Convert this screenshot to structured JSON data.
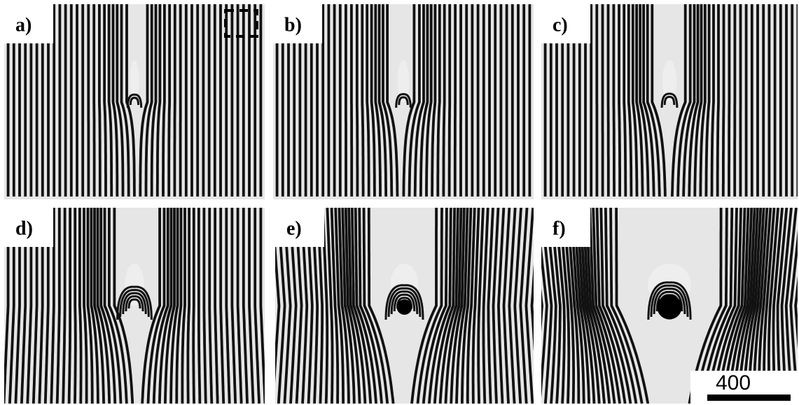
{
  "panels": [
    {
      "label": "a)"
    },
    {
      "label": "b)"
    },
    {
      "label": "c)"
    },
    {
      "label": "d)"
    },
    {
      "label": "e)"
    },
    {
      "label": "f)"
    }
  ],
  "scale_bar": {
    "label": "400"
  }
}
